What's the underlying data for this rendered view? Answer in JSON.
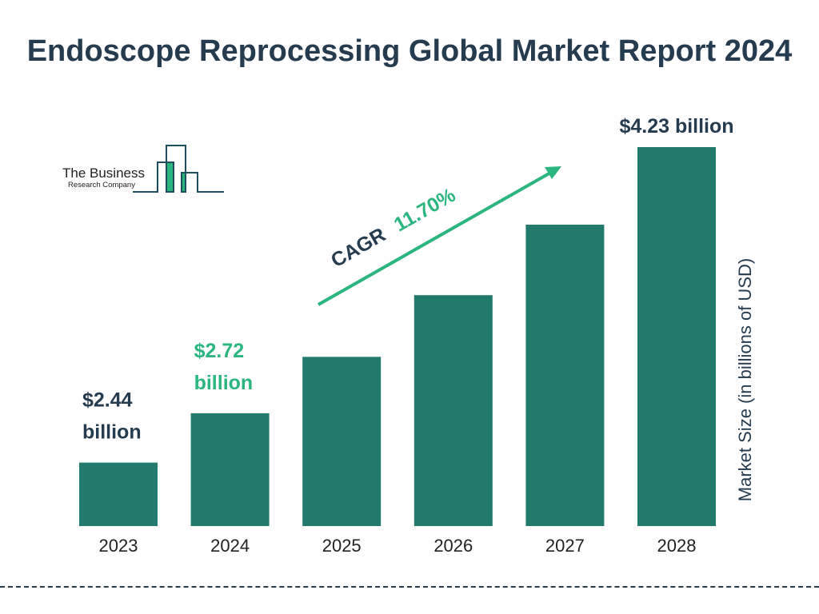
{
  "chart_data": {
    "type": "bar",
    "title": "Endoscope Reprocessing Global Market Report 2024",
    "ylabel": "Market Size (in billions of USD)",
    "xlabel": "",
    "categories": [
      "2023",
      "2024",
      "2025",
      "2026",
      "2027",
      "2028"
    ],
    "values": [
      2.44,
      2.72,
      3.04,
      3.39,
      3.79,
      4.23
    ],
    "data_labels": [
      {
        "category": "2023",
        "line1": "$2.44",
        "line2": "billion",
        "color": "#253b4f"
      },
      {
        "category": "2024",
        "line1": "$2.72",
        "line2": "billion",
        "color": "#2bb57f"
      },
      {
        "category": "2028",
        "line1": "$4.23 billion",
        "line2": "",
        "color": "#253b4f"
      }
    ],
    "ylim": [
      2.08,
      4.23
    ],
    "grid": false,
    "bar_color": "#217a6b",
    "annotation": {
      "prefix": "CAGR",
      "value": "11.70%",
      "prefix_color": "#253b4f",
      "value_color": "#2bb57f"
    }
  },
  "logo": {
    "line1": "The Business",
    "line2": "Research Company"
  }
}
